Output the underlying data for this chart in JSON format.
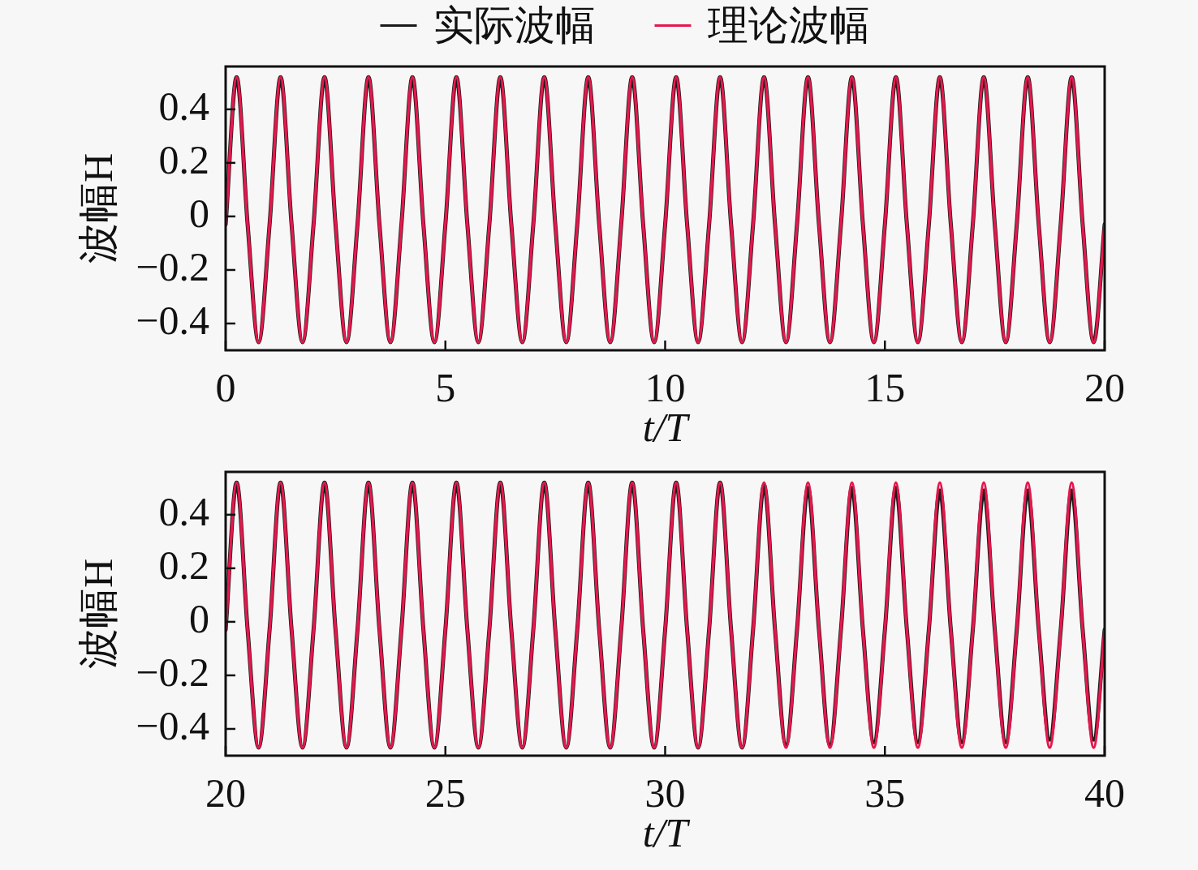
{
  "chart_data": [
    {
      "type": "line",
      "xlabel": "t/T",
      "ylabel": "波幅H",
      "legend": "top",
      "x": [
        0,
        0.25,
        0.5,
        0.75,
        1,
        1.25,
        1.5,
        1.75,
        2,
        2.25,
        2.5,
        2.75,
        3,
        3.25,
        3.5,
        3.75,
        4,
        4.25,
        4.5,
        4.75,
        5,
        5.25,
        5.5,
        5.75,
        6,
        6.25,
        6.5,
        6.75,
        7,
        7.25,
        7.5,
        7.75,
        8,
        8.25,
        8.5,
        8.75,
        9,
        9.25,
        9.5,
        9.75,
        10,
        10.25,
        10.5,
        10.75,
        11,
        11.25,
        11.5,
        11.75,
        12,
        12.25,
        12.5,
        12.75,
        13,
        13.25,
        13.5,
        13.75,
        14,
        14.25,
        14.5,
        14.75,
        15,
        15.25,
        15.5,
        15.75,
        16,
        16.25,
        16.5,
        16.75,
        17,
        17.25,
        17.5,
        17.75,
        18,
        18.25,
        18.5,
        18.75,
        19,
        19.25,
        19.5,
        19.75,
        20
      ],
      "xlim": [
        0,
        20
      ],
      "xticks": [
        0,
        5,
        10,
        15,
        20
      ],
      "ylim": [
        -0.5,
        0.56
      ],
      "yticks": [
        -0.4,
        -0.2,
        0,
        0.2,
        0.4
      ],
      "series": [
        {
          "name": "实际波幅",
          "color": "#1a1a1a",
          "values": [
            -0.03,
            0.52,
            -0.03,
            -0.47,
            -0.03,
            0.52,
            -0.03,
            -0.47,
            -0.03,
            0.52,
            -0.03,
            -0.47,
            -0.03,
            0.52,
            -0.03,
            -0.47,
            -0.03,
            0.52,
            -0.03,
            -0.47,
            -0.03,
            0.52,
            -0.03,
            -0.47,
            -0.03,
            0.52,
            -0.03,
            -0.47,
            -0.03,
            0.52,
            -0.03,
            -0.47,
            -0.03,
            0.52,
            -0.03,
            -0.47,
            -0.03,
            0.52,
            -0.03,
            -0.47,
            -0.03,
            0.52,
            -0.03,
            -0.47,
            -0.03,
            0.52,
            -0.03,
            -0.47,
            -0.03,
            0.52,
            -0.03,
            -0.47,
            -0.03,
            0.52,
            -0.03,
            -0.47,
            -0.03,
            0.52,
            -0.03,
            -0.47,
            -0.03,
            0.52,
            -0.03,
            -0.47,
            -0.03,
            0.52,
            -0.03,
            -0.47,
            -0.03,
            0.52,
            -0.03,
            -0.47,
            -0.03,
            0.52,
            -0.03,
            -0.47,
            -0.03,
            0.52,
            -0.03,
            -0.47,
            -0.03
          ]
        },
        {
          "name": "理论波幅",
          "color": "#e5184d",
          "values": [
            -0.03,
            0.52,
            -0.03,
            -0.47,
            -0.03,
            0.52,
            -0.03,
            -0.47,
            -0.03,
            0.52,
            -0.03,
            -0.47,
            -0.03,
            0.52,
            -0.03,
            -0.47,
            -0.03,
            0.52,
            -0.03,
            -0.47,
            -0.03,
            0.52,
            -0.03,
            -0.47,
            -0.03,
            0.52,
            -0.03,
            -0.47,
            -0.03,
            0.52,
            -0.03,
            -0.47,
            -0.03,
            0.52,
            -0.03,
            -0.47,
            -0.03,
            0.52,
            -0.03,
            -0.47,
            -0.03,
            0.52,
            -0.03,
            -0.47,
            -0.03,
            0.52,
            -0.03,
            -0.47,
            -0.03,
            0.52,
            -0.03,
            -0.47,
            -0.03,
            0.52,
            -0.03,
            -0.47,
            -0.03,
            0.52,
            -0.03,
            -0.47,
            -0.03,
            0.52,
            -0.03,
            -0.47,
            -0.03,
            0.52,
            -0.03,
            -0.47,
            -0.03,
            0.52,
            -0.03,
            -0.47,
            -0.03,
            0.52,
            -0.03,
            -0.47,
            -0.03,
            0.52,
            -0.03,
            -0.47,
            -0.03
          ]
        }
      ]
    },
    {
      "type": "line",
      "xlabel": "t/T",
      "ylabel": "波幅H",
      "x": [
        20,
        20.25,
        20.5,
        20.75,
        21,
        21.25,
        21.5,
        21.75,
        22,
        22.25,
        22.5,
        22.75,
        23,
        23.25,
        23.5,
        23.75,
        24,
        24.25,
        24.5,
        24.75,
        25,
        25.25,
        25.5,
        25.75,
        26,
        26.25,
        26.5,
        26.75,
        27,
        27.25,
        27.5,
        27.75,
        28,
        28.25,
        28.5,
        28.75,
        29,
        29.25,
        29.5,
        29.75,
        30,
        30.25,
        30.5,
        30.75,
        31,
        31.25,
        31.5,
        31.75,
        32,
        32.25,
        32.5,
        32.75,
        33,
        33.25,
        33.5,
        33.75,
        34,
        34.25,
        34.5,
        34.75,
        35,
        35.25,
        35.5,
        35.75,
        36,
        36.25,
        36.5,
        36.75,
        37,
        37.25,
        37.5,
        37.75,
        38,
        38.25,
        38.5,
        38.75,
        39,
        39.25,
        39.5,
        39.75,
        40
      ],
      "xlim": [
        20,
        40
      ],
      "xticks": [
        20,
        25,
        30,
        35,
        40
      ],
      "ylim": [
        -0.5,
        0.56
      ],
      "yticks": [
        -0.4,
        -0.2,
        0,
        0.2,
        0.4
      ],
      "series": [
        {
          "color": "#1a1a1a",
          "values": [
            -0.03,
            0.52,
            -0.03,
            -0.47,
            -0.03,
            0.52,
            -0.03,
            -0.47,
            -0.03,
            0.52,
            -0.03,
            -0.47,
            -0.03,
            0.52,
            -0.03,
            -0.47,
            -0.03,
            0.52,
            -0.03,
            -0.47,
            -0.03,
            0.52,
            -0.03,
            -0.47,
            -0.03,
            0.52,
            -0.03,
            -0.47,
            -0.03,
            0.52,
            -0.03,
            -0.47,
            -0.03,
            0.52,
            -0.03,
            -0.47,
            -0.03,
            0.52,
            -0.03,
            -0.47,
            -0.03,
            0.52,
            -0.03,
            -0.47,
            -0.03,
            0.52,
            -0.03,
            -0.47,
            -0.03,
            0.51,
            -0.03,
            -0.46,
            -0.03,
            0.5,
            -0.03,
            -0.46,
            -0.03,
            0.5,
            -0.03,
            -0.45,
            -0.03,
            0.5,
            -0.03,
            -0.45,
            -0.03,
            0.49,
            -0.03,
            -0.45,
            -0.03,
            0.49,
            -0.03,
            -0.45,
            -0.03,
            0.49,
            -0.03,
            -0.44,
            -0.03,
            0.49,
            -0.03,
            -0.44,
            -0.03
          ]
        },
        {
          "color": "#e5184d",
          "values": [
            -0.03,
            0.52,
            -0.03,
            -0.47,
            -0.03,
            0.52,
            -0.03,
            -0.47,
            -0.03,
            0.52,
            -0.03,
            -0.47,
            -0.03,
            0.52,
            -0.03,
            -0.47,
            -0.03,
            0.52,
            -0.03,
            -0.47,
            -0.03,
            0.52,
            -0.03,
            -0.47,
            -0.03,
            0.52,
            -0.03,
            -0.47,
            -0.03,
            0.52,
            -0.03,
            -0.47,
            -0.03,
            0.52,
            -0.03,
            -0.47,
            -0.03,
            0.52,
            -0.03,
            -0.47,
            -0.03,
            0.52,
            -0.03,
            -0.47,
            -0.03,
            0.52,
            -0.03,
            -0.47,
            -0.03,
            0.52,
            -0.03,
            -0.47,
            -0.03,
            0.52,
            -0.03,
            -0.47,
            -0.03,
            0.52,
            -0.03,
            -0.47,
            -0.03,
            0.52,
            -0.03,
            -0.47,
            -0.03,
            0.52,
            -0.03,
            -0.47,
            -0.03,
            0.52,
            -0.03,
            -0.47,
            -0.03,
            0.52,
            -0.03,
            -0.47,
            -0.03,
            0.52,
            -0.03,
            -0.47,
            -0.03
          ]
        }
      ]
    }
  ]
}
